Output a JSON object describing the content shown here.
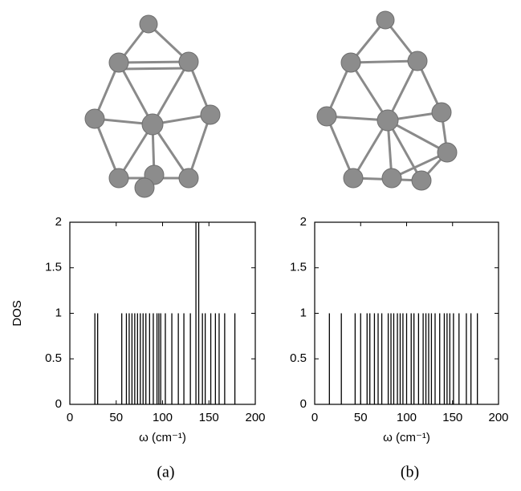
{
  "chart_data": [
    {
      "type": "stick",
      "xlabel": "ω (cm⁻¹)",
      "ylabel": "DOS",
      "caption": "(a)",
      "color": "#000000",
      "x": [
        27,
        30,
        56,
        61,
        64,
        67,
        70,
        73,
        76,
        79,
        82,
        86,
        90,
        94,
        96,
        98,
        103,
        110,
        117,
        123,
        130,
        136,
        139,
        143,
        146,
        152,
        157,
        161,
        167,
        178
      ],
      "values": [
        1,
        1,
        1,
        1,
        1,
        1,
        1,
        1,
        1,
        1,
        1,
        1,
        1,
        1,
        1,
        1,
        1,
        1,
        1,
        1,
        1,
        2,
        2,
        1,
        1,
        1,
        1,
        1,
        1,
        1
      ],
      "xlim": [
        0,
        200
      ],
      "xticks": [
        0,
        50,
        100,
        150,
        200
      ],
      "ylim": [
        0,
        2
      ],
      "yticks": [
        0,
        0.5,
        1,
        1.5,
        2
      ]
    },
    {
      "type": "stick",
      "xlabel": "ω (cm⁻¹)",
      "caption": "(b)",
      "color": "#000000",
      "x": [
        16,
        29,
        44,
        50,
        57,
        60,
        65,
        69,
        73,
        80,
        83,
        86,
        90,
        93,
        96,
        100,
        105,
        108,
        113,
        118,
        121,
        124,
        127,
        131,
        136,
        141,
        144,
        147,
        151,
        157,
        165,
        170,
        177
      ],
      "values": [
        1,
        1,
        1,
        1,
        1,
        1,
        1,
        1,
        1,
        1,
        1,
        1,
        1,
        1,
        1,
        1,
        1,
        1,
        1,
        1,
        1,
        1,
        1,
        1,
        1,
        1,
        1,
        1,
        1,
        1,
        1,
        1,
        1
      ],
      "xlim": [
        0,
        200
      ],
      "xticks": [
        0,
        50,
        100,
        150,
        200
      ],
      "ylim": [
        0,
        2
      ],
      "yticks": [
        0,
        0.5,
        1,
        1.5,
        2
      ]
    }
  ]
}
